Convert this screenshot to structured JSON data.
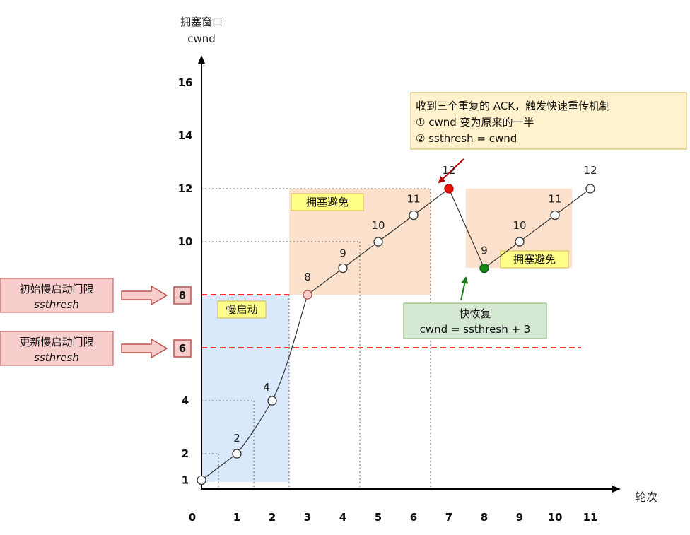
{
  "y_axis": {
    "title": "拥塞窗口",
    "subtitle": "cwnd",
    "ticks": [
      "1",
      "2",
      "4",
      "8",
      "10",
      "12",
      "14",
      "16"
    ]
  },
  "x_axis": {
    "title": "轮次",
    "ticks": [
      "0",
      "1",
      "2",
      "3",
      "4",
      "5",
      "6",
      "7",
      "8",
      "9",
      "10",
      "11"
    ]
  },
  "region_labels": {
    "slow_start": "慢启动",
    "congestion_avoidance_1": "拥塞避免",
    "congestion_avoidance_2": "拥塞避免"
  },
  "callouts": {
    "initial_ssthresh": {
      "line1": "初始慢启动门限",
      "line2": "ssthresh",
      "value": "8"
    },
    "updated_ssthresh": {
      "line1": "更新慢启动门限",
      "line2": "ssthresh",
      "value": "6"
    },
    "triple_ack": {
      "line1": "收到三个重复的 ACK，触发快速重传机制",
      "line2": "① cwnd 变为原来的一半",
      "line3": "② ssthresh = cwnd"
    },
    "fast_recovery": {
      "line1": "快恢复",
      "line2": "cwnd = ssthresh + 3"
    }
  },
  "point_labels": [
    "2",
    "4",
    "8",
    "9",
    "10",
    "11",
    "12",
    "9",
    "10",
    "11",
    "12"
  ],
  "colors": {
    "slow_start_fill": "#dae8fc",
    "avoidance_fill": "#fce1cc",
    "threshold_line": "#ff3333",
    "callout_red_fill": "#f8cecc",
    "callout_red_stroke": "#b85450",
    "note_fill": "#fff2cc",
    "note_stroke": "#d6b656",
    "green_fill": "#d5e8d4",
    "green_stroke": "#82b366",
    "tag_fill": "#ffff88",
    "peak_point": "#e51400",
    "recovery_point": "#1a8a1a"
  },
  "chart_data": {
    "type": "line",
    "x": [
      0,
      1,
      2,
      3,
      4,
      5,
      6,
      7,
      8,
      9,
      10,
      11
    ],
    "y": [
      1,
      2,
      4,
      8,
      9,
      10,
      11,
      12,
      9,
      10,
      11,
      12
    ],
    "thresholds": [
      8,
      6
    ],
    "xlabel": "轮次",
    "ylabel": "拥塞窗口 cwnd"
  }
}
